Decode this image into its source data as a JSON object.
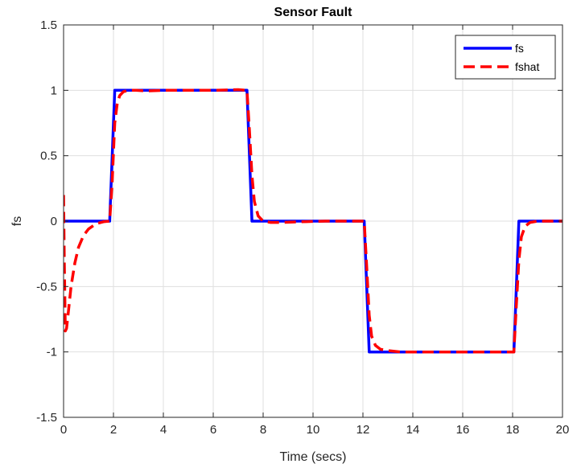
{
  "chart_data": {
    "type": "line",
    "title": "Sensor Fault",
    "xlabel": "Time (secs)",
    "ylabel": "fs",
    "xlim": [
      0,
      20
    ],
    "ylim": [
      -1.5,
      1.5
    ],
    "xticks": [
      "0",
      "2",
      "4",
      "6",
      "8",
      "10",
      "12",
      "14",
      "16",
      "18",
      "20"
    ],
    "yticks": [
      "-1.5",
      "-1",
      "-0.5",
      "0",
      "0.5",
      "1",
      "1.5"
    ],
    "grid": true,
    "legend_position": "top-right",
    "series": [
      {
        "name": "fs",
        "color": "#0000ff",
        "style": "solid",
        "x": [
          0,
          1.85,
          2.05,
          7.35,
          7.55,
          12.05,
          12.25,
          18.05,
          18.25,
          20
        ],
        "y": [
          0,
          0,
          1,
          1,
          0,
          0,
          -1,
          -1,
          0,
          0
        ]
      },
      {
        "name": "fshat",
        "color": "#ff0000",
        "style": "dashed",
        "x": [
          0,
          0.03,
          0.07,
          0.12,
          0.2,
          0.3,
          0.45,
          0.6,
          0.8,
          1.0,
          1.3,
          1.6,
          1.85,
          1.95,
          2.05,
          2.15,
          2.25,
          2.4,
          2.6,
          2.9,
          3.3,
          4,
          5,
          6,
          7,
          7.35,
          7.45,
          7.55,
          7.65,
          7.8,
          8.0,
          8.3,
          8.8,
          9.5,
          10.5,
          11.5,
          12.05,
          12.15,
          12.25,
          12.35,
          12.5,
          12.7,
          13.0,
          13.5,
          14.5,
          15.5,
          16.5,
          17.5,
          18.05,
          18.15,
          18.25,
          18.35,
          18.5,
          18.7,
          19.0,
          19.5,
          20
        ],
        "y": [
          0.2,
          -0.3,
          -0.84,
          -0.82,
          -0.68,
          -0.5,
          -0.32,
          -0.2,
          -0.11,
          -0.06,
          -0.02,
          -0.005,
          0,
          0.3,
          0.75,
          0.9,
          0.96,
          0.99,
          1.0,
          1.0,
          0.995,
          1.0,
          1.0,
          1.0,
          1.005,
          1.0,
          0.7,
          0.35,
          0.15,
          0.04,
          0.0,
          -0.01,
          -0.01,
          -0.005,
          0,
          0,
          0,
          -0.35,
          -0.72,
          -0.88,
          -0.95,
          -0.98,
          -0.99,
          -1.0,
          -1.0,
          -1.0,
          -1.0,
          -1.0,
          -1.0,
          -0.65,
          -0.3,
          -0.12,
          -0.04,
          -0.01,
          0,
          0,
          0
        ]
      }
    ]
  }
}
